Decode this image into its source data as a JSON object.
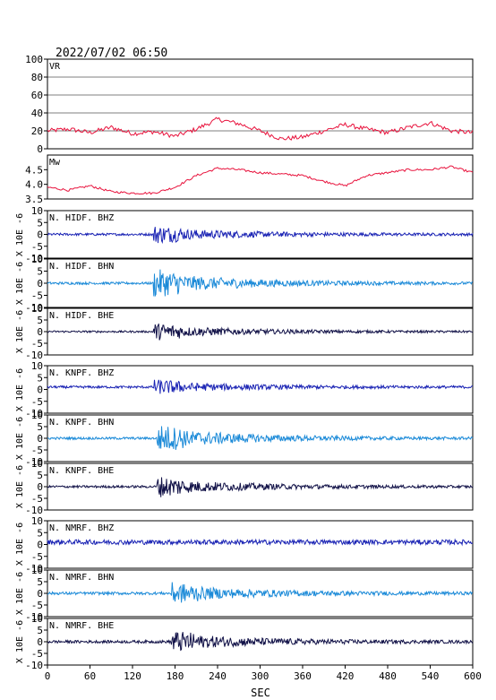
{
  "title": "2022/07/02  06:50",
  "xlabel": "SEC",
  "chart_data": [
    {
      "type": "line",
      "label": "VR",
      "ylim": [
        0,
        100
      ],
      "yticks": [
        0,
        20,
        40,
        60,
        80,
        100
      ],
      "grid": [
        20,
        40,
        60,
        80
      ],
      "color": "#e8123c",
      "x": [
        0,
        30,
        60,
        90,
        120,
        150,
        180,
        210,
        240,
        270,
        300,
        330,
        360,
        390,
        420,
        450,
        480,
        510,
        540,
        570,
        600
      ],
      "values": [
        20,
        22,
        18,
        24,
        17,
        19,
        14,
        22,
        33,
        28,
        20,
        11,
        13,
        20,
        27,
        22,
        18,
        24,
        29,
        20,
        18
      ]
    },
    {
      "type": "line",
      "label": "Mw",
      "ylim": [
        3.5,
        5.0
      ],
      "yticks": [
        3.5,
        4.0,
        4.5
      ],
      "grid": [],
      "color": "#e8123c",
      "x": [
        0,
        30,
        60,
        90,
        120,
        150,
        180,
        210,
        240,
        270,
        300,
        330,
        360,
        390,
        420,
        450,
        480,
        510,
        540,
        570,
        600
      ],
      "values": [
        3.9,
        3.8,
        3.95,
        3.75,
        3.7,
        3.7,
        3.9,
        4.3,
        4.55,
        4.5,
        4.4,
        4.35,
        4.3,
        4.1,
        3.95,
        4.3,
        4.4,
        4.5,
        4.5,
        4.6,
        4.4
      ]
    },
    {
      "type": "line",
      "label": "N. HIDF. BHZ",
      "ylim": [
        -10,
        10
      ],
      "yticks": [
        -10,
        -5,
        0,
        5,
        10
      ],
      "grid": [],
      "color": "#1a23b4",
      "onset": 150,
      "amplitude": [
        0.5,
        2.5
      ],
      "offset": 0
    },
    {
      "type": "line",
      "label": "N. HIDF. BHN",
      "ylim": [
        -10,
        10
      ],
      "yticks": [
        -10,
        -5,
        0,
        5,
        10
      ],
      "grid": [],
      "color": "#1b8ad8",
      "onset": 150,
      "amplitude": [
        0.5,
        4
      ],
      "offset": 0
    },
    {
      "type": "line",
      "label": "N. HIDF. BHE",
      "ylim": [
        -10,
        10
      ],
      "yticks": [
        -10,
        -5,
        0,
        5,
        10
      ],
      "grid": [],
      "color": "#111147",
      "onset": 150,
      "amplitude": [
        0.4,
        2.5
      ],
      "offset": 0
    },
    {
      "type": "line",
      "label": "N. KNPF. BHZ",
      "ylim": [
        -10,
        10
      ],
      "yticks": [
        -10,
        -5,
        0,
        5,
        10
      ],
      "grid": [],
      "color": "#1a23b4",
      "onset": 150,
      "amplitude": [
        0.5,
        2
      ],
      "offset": 1
    },
    {
      "type": "line",
      "label": "N. KNPF. BHN",
      "ylim": [
        -10,
        10
      ],
      "yticks": [
        -10,
        -5,
        0,
        5,
        10
      ],
      "grid": [],
      "color": "#1b8ad8",
      "onset": 155,
      "amplitude": [
        0.5,
        4
      ],
      "offset": 0
    },
    {
      "type": "line",
      "label": "N. KNPF. BHE",
      "ylim": [
        -10,
        10
      ],
      "yticks": [
        -10,
        -5,
        0,
        5,
        10
      ],
      "grid": [],
      "color": "#111147",
      "onset": 155,
      "amplitude": [
        0.5,
        3
      ],
      "offset": 0
    },
    {
      "type": "line",
      "label": "N. NMRF. BHZ",
      "ylim": [
        -10,
        10
      ],
      "yticks": [
        -10,
        -5,
        0,
        5,
        10
      ],
      "grid": [],
      "color": "#1a23b4",
      "onset": 0,
      "amplitude": [
        1,
        2
      ],
      "offset": 1
    },
    {
      "type": "line",
      "label": "N. NMRF. BHN",
      "ylim": [
        -10,
        10
      ],
      "yticks": [
        -10,
        -5,
        0,
        5,
        10
      ],
      "grid": [],
      "color": "#1b8ad8",
      "onset": 175,
      "amplitude": [
        0.6,
        3
      ],
      "offset": 0
    },
    {
      "type": "line",
      "label": "N. NMRF. BHE",
      "ylim": [
        -10,
        10
      ],
      "yticks": [
        -10,
        -5,
        0,
        5,
        10
      ],
      "grid": [],
      "color": "#111147",
      "onset": 175,
      "amplitude": [
        0.6,
        3
      ],
      "offset": 0
    }
  ],
  "unit_label": "X 10E -6",
  "xaxis": {
    "xlim": [
      0,
      600
    ],
    "ticks": [
      0,
      60,
      120,
      180,
      240,
      300,
      360,
      420,
      480,
      540,
      600
    ]
  }
}
